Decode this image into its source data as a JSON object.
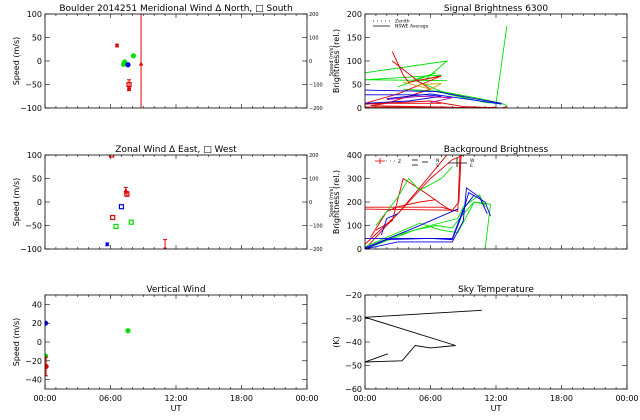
{
  "chart_data": [
    {
      "id": "meridional",
      "type": "scatter",
      "title": "Boulder   2014251     Meridional Wind   Δ North, □ South",
      "xlabel": "",
      "ylabel": "Speed (m/s)",
      "ylim": [
        -100,
        100
      ],
      "yticks": [
        -100,
        -50,
        0,
        50,
        100
      ],
      "right_ylabel": "Speed (m/s)",
      "right_ylim": [
        -200,
        200
      ],
      "right_yticks": [
        -200,
        -100,
        0,
        100,
        200
      ],
      "xlim": [
        0,
        24
      ],
      "show_xticklabels": false,
      "points": [
        {
          "x": 6.6,
          "y": 33,
          "color": "#e00000",
          "marker": "bar",
          "err": 3
        },
        {
          "x": 7.3,
          "y": -2,
          "color": "#00e000",
          "marker": "dot"
        },
        {
          "x": 7.2,
          "y": -7,
          "color": "#00e000",
          "marker": "dot"
        },
        {
          "x": 7.6,
          "y": -8,
          "color": "#0000e0",
          "marker": "dot"
        },
        {
          "x": 8.1,
          "y": 11,
          "color": "#00e000",
          "marker": "dot"
        },
        {
          "x": 7.7,
          "y": -50,
          "color": "#e00000",
          "marker": "square",
          "err": 10
        },
        {
          "x": 7.7,
          "y": -60,
          "color": "#e00000",
          "marker": "bar",
          "err": 3
        },
        {
          "x": 8.8,
          "y": -6,
          "color": "#e00000",
          "marker": "triangle"
        }
      ],
      "vlines": [
        {
          "x": 8.8,
          "color": "#e00000"
        }
      ]
    },
    {
      "id": "zonal",
      "type": "scatter",
      "title": "Zonal Wind      Δ East, □ West",
      "xlabel": "",
      "ylabel": "Speed (m/s)",
      "ylim": [
        -100,
        100
      ],
      "yticks": [
        -100,
        -50,
        0,
        50,
        100
      ],
      "right_ylabel": "Speed (m/s)",
      "right_ylim": [
        -200,
        200
      ],
      "right_yticks": [
        -200,
        -100,
        0,
        100,
        200
      ],
      "xlim": [
        0,
        24
      ],
      "show_xticklabels": false,
      "points": [
        {
          "x": 6.1,
          "y": 100,
          "color": "#e00000",
          "marker": "square"
        },
        {
          "x": 7.4,
          "y": 25,
          "color": "#e00000",
          "marker": "triangle",
          "err": 6
        },
        {
          "x": 7.5,
          "y": 17,
          "color": "#e00000",
          "marker": "square",
          "err": 5
        },
        {
          "x": 7.0,
          "y": -10,
          "color": "#0000e0",
          "marker": "square"
        },
        {
          "x": 6.2,
          "y": -33,
          "color": "#e00000",
          "marker": "square"
        },
        {
          "x": 6.5,
          "y": -52,
          "color": "#00e000",
          "marker": "square"
        },
        {
          "x": 7.9,
          "y": -43,
          "color": "#00e000",
          "marker": "square"
        },
        {
          "x": 5.7,
          "y": -90,
          "color": "#0000e0",
          "marker": "bar",
          "err": 3
        },
        {
          "x": 11.0,
          "y": -100,
          "color": "#e00000",
          "marker": "bar",
          "err": 20
        }
      ],
      "vlines": []
    },
    {
      "id": "vertical",
      "type": "scatter",
      "title": "Vertical Wind",
      "xlabel": "UT",
      "ylabel": "Speed (m/s)",
      "ylim": [
        -50,
        50
      ],
      "yticks": [
        -40,
        -20,
        0,
        20,
        40
      ],
      "xlim": [
        0,
        24
      ],
      "xticks": [
        "00:00",
        "06:00",
        "12:00",
        "18:00",
        "00:00"
      ],
      "show_xticklabels": true,
      "points": [
        {
          "x": 0.05,
          "y": 20,
          "color": "#0000e0",
          "marker": "dot"
        },
        {
          "x": 7.6,
          "y": 12,
          "color": "#00e000",
          "marker": "dot"
        },
        {
          "x": 0.05,
          "y": -15,
          "color": "#00e000",
          "marker": "dot"
        },
        {
          "x": 0.1,
          "y": -26,
          "color": "#e00000",
          "marker": "dot",
          "err": 10
        }
      ],
      "vlines": []
    },
    {
      "id": "signal",
      "type": "line",
      "title": "Signal Brightness      6300",
      "xlabel": "",
      "ylabel": "Brightness (rel.)",
      "ylim": [
        0,
        200
      ],
      "yticks": [
        0,
        50,
        100,
        150,
        200
      ],
      "xlim": [
        0,
        24
      ],
      "show_xticklabels": false,
      "legend": {
        "position": "top-left",
        "entries": [
          {
            "label": "Zenith",
            "style": "dotted"
          },
          {
            "label": "NSWE Average",
            "style": "solid"
          }
        ]
      },
      "series": [
        {
          "color": "#00e000",
          "points": [
            [
              0,
              75
            ],
            [
              7.5,
              100
            ],
            [
              5.5,
              60
            ],
            [
              7.0,
              70
            ],
            [
              0,
              60
            ],
            [
              7.5,
              58
            ]
          ]
        },
        {
          "color": "#00e000",
          "points": [
            [
              3.0,
              45
            ],
            [
              6.5,
              75
            ],
            [
              4.5,
              60
            ],
            [
              7.5,
              30
            ],
            [
              11.0,
              12
            ],
            [
              12.0,
              10
            ],
            [
              13.0,
              175
            ]
          ]
        },
        {
          "color": "#00e000",
          "points": [
            [
              3.5,
              40
            ],
            [
              7.0,
              35
            ],
            [
              10.5,
              20
            ],
            [
              12.5,
              10
            ],
            [
              13.0,
              5
            ]
          ]
        },
        {
          "color": "#e00000",
          "points": [
            [
              2.5,
              120
            ],
            [
              3.5,
              70
            ],
            [
              4.0,
              55
            ],
            [
              7.0,
              68
            ],
            [
              3.0,
              30
            ],
            [
              0,
              10
            ],
            [
              7.0,
              10
            ]
          ]
        },
        {
          "color": "#e00000",
          "points": [
            [
              2.5,
              100
            ],
            [
              5.0,
              55
            ],
            [
              6.0,
              40
            ],
            [
              2.0,
              10
            ],
            [
              0.5,
              5
            ],
            [
              7.5,
              2
            ]
          ]
        },
        {
          "color": "#e00000",
          "points": [
            [
              0,
              8
            ],
            [
              6.0,
              15
            ],
            [
              9.0,
              3
            ],
            [
              12.5,
              0
            ],
            [
              13.0,
              3
            ]
          ]
        },
        {
          "color": "#e00000",
          "points": [
            [
              0,
              2
            ],
            [
              7.0,
              2
            ],
            [
              11.0,
              0
            ],
            [
              12.0,
              2
            ]
          ]
        },
        {
          "color": "#0000e0",
          "points": [
            [
              0,
              38
            ],
            [
              6.5,
              35
            ],
            [
              10.0,
              20
            ],
            [
              12.0,
              12
            ],
            [
              12.5,
              10
            ]
          ]
        },
        {
          "color": "#0000e0",
          "points": [
            [
              0,
              28
            ],
            [
              5.5,
              28
            ],
            [
              7.0,
              25
            ],
            [
              4.0,
              15
            ],
            [
              0,
              10
            ]
          ]
        },
        {
          "color": "#0000e0",
          "points": [
            [
              2.0,
              20
            ],
            [
              6.0,
              30
            ],
            [
              11.5,
              12
            ],
            [
              12.5,
              8
            ]
          ]
        },
        {
          "color": "#a000a0",
          "points": [
            [
              2.0,
              18
            ],
            [
              5.0,
              25
            ],
            [
              8.0,
              22
            ],
            [
              6.0,
              12
            ]
          ]
        },
        {
          "color": "#c8a000",
          "points": [
            [
              3.5,
              55
            ],
            [
              6.0,
              40
            ],
            [
              7.0,
              52
            ],
            [
              5.0,
              50
            ]
          ]
        }
      ]
    },
    {
      "id": "background",
      "type": "line",
      "title": "Background Brightness",
      "xlabel": "",
      "ylabel": "Brightness (rel.)",
      "ylim": [
        0,
        400
      ],
      "yticks": [
        0,
        100,
        200,
        300,
        400
      ],
      "xlim": [
        0,
        24
      ],
      "show_xticklabels": false,
      "legend": {
        "position": "top-left",
        "entries": [
          {
            "label": "Z",
            "style": "cross-dotted"
          },
          {
            "label": "N",
            "style": "dash"
          },
          {
            "label": "S",
            "style": "dash"
          },
          {
            "label": "W",
            "style": "solid-cross"
          },
          {
            "label": "E",
            "style": "solid-cross"
          }
        ]
      },
      "series": [
        {
          "color": "#e00000",
          "points": [
            [
              0,
              0
            ],
            [
              2.0,
              100
            ],
            [
              4.0,
              200
            ],
            [
              6.0,
              300
            ],
            [
              8.0,
              380
            ],
            [
              9.0,
              400
            ]
          ]
        },
        {
          "color": "#e00000",
          "points": [
            [
              0,
              20
            ],
            [
              3.0,
              150
            ],
            [
              5.0,
              260
            ],
            [
              7.5,
              400
            ]
          ]
        },
        {
          "color": "#e00000",
          "points": [
            [
              0,
              178
            ],
            [
              7.0,
              178
            ],
            [
              8.5,
              160
            ],
            [
              8.7,
              400
            ]
          ]
        },
        {
          "color": "#e00000",
          "points": [
            [
              0,
              170
            ],
            [
              8.0,
              165
            ],
            [
              8.6,
              200
            ],
            [
              8.8,
              400
            ]
          ]
        },
        {
          "color": "#e00000",
          "points": [
            [
              1.0,
              80
            ],
            [
              2.5,
              120
            ],
            [
              3.5,
              300
            ],
            [
              5.5,
              240
            ],
            [
              7.0,
              190
            ],
            [
              8.0,
              160
            ]
          ]
        },
        {
          "color": "#e00000",
          "points": [
            [
              0.5,
              50
            ],
            [
              2.0,
              160
            ],
            [
              3.0,
              180
            ],
            [
              5.0,
              200
            ],
            [
              6.5,
              210
            ]
          ]
        },
        {
          "color": "#00e000",
          "points": [
            [
              0,
              0
            ],
            [
              3.0,
              60
            ],
            [
              6.0,
              100
            ],
            [
              8.5,
              130
            ],
            [
              9.0,
              180
            ],
            [
              10.5,
              230
            ],
            [
              11.0,
              180
            ]
          ]
        },
        {
          "color": "#00e000",
          "points": [
            [
              0,
              0
            ],
            [
              4.5,
              80
            ],
            [
              6.5,
              100
            ],
            [
              8.0,
              90
            ],
            [
              9.0,
              150
            ],
            [
              10.0,
              200
            ],
            [
              11.0,
              190
            ]
          ]
        },
        {
          "color": "#00e000",
          "points": [
            [
              0,
              10
            ],
            [
              5.0,
              110
            ],
            [
              7.0,
              80
            ],
            [
              8.5,
              70
            ],
            [
              10.0,
              200
            ],
            [
              11.5,
              190
            ],
            [
              11.0,
              0
            ]
          ]
        },
        {
          "color": "#00e000",
          "points": [
            [
              1.0,
              100
            ],
            [
              3.0,
              220
            ],
            [
              4.0,
              300
            ],
            [
              5.0,
              250
            ],
            [
              7.0,
              300
            ],
            [
              8.0,
              350
            ]
          ]
        },
        {
          "color": "#0000e0",
          "points": [
            [
              0,
              0
            ],
            [
              2.0,
              40
            ],
            [
              6.0,
              45
            ],
            [
              8.0,
              40
            ],
            [
              9.0,
              160
            ],
            [
              9.5,
              240
            ],
            [
              11.0,
              200
            ],
            [
              11.5,
              140
            ]
          ]
        },
        {
          "color": "#0000e0",
          "points": [
            [
              0,
              0
            ],
            [
              3.0,
              30
            ],
            [
              6.0,
              30
            ],
            [
              8.0,
              30
            ],
            [
              9.0,
              120
            ],
            [
              9.3,
              260
            ],
            [
              10.5,
              220
            ],
            [
              11.2,
              150
            ]
          ]
        },
        {
          "color": "#0000e0",
          "points": [
            [
              0,
              45
            ],
            [
              5.0,
              45
            ],
            [
              8.0,
              45
            ],
            [
              9.0,
              170
            ],
            [
              10.0,
              230
            ]
          ]
        },
        {
          "color": "#0000e0",
          "points": [
            [
              0,
              5
            ],
            [
              4.0,
              80
            ],
            [
              7.0,
              140
            ],
            [
              8.5,
              170
            ]
          ]
        },
        {
          "color": "#0000e0",
          "points": [
            [
              1.5,
              60
            ],
            [
              2.0,
              130
            ],
            [
              3.0,
              150
            ]
          ]
        }
      ]
    },
    {
      "id": "skytemp",
      "type": "line",
      "title": "Sky Temperature",
      "xlabel": "UT",
      "ylabel": "(K)",
      "ylim": [
        -60,
        -20
      ],
      "yticks": [
        -60,
        -50,
        -40,
        -30,
        -20
      ],
      "xlim": [
        0,
        24
      ],
      "xticks": [
        "00:00",
        "06:00",
        "12:00",
        "18:00",
        "00:00"
      ],
      "show_xticklabels": true,
      "series": [
        {
          "color": "#000000",
          "points": [
            [
              2.1,
              -45
            ],
            [
              0,
              -48.5
            ],
            [
              3.4,
              -48
            ],
            [
              4.6,
              -41.5
            ],
            [
              6.0,
              -42.5
            ],
            [
              8.3,
              -41.5
            ],
            [
              0,
              -29.5
            ],
            [
              10.7,
              -26.5
            ]
          ]
        }
      ]
    }
  ]
}
